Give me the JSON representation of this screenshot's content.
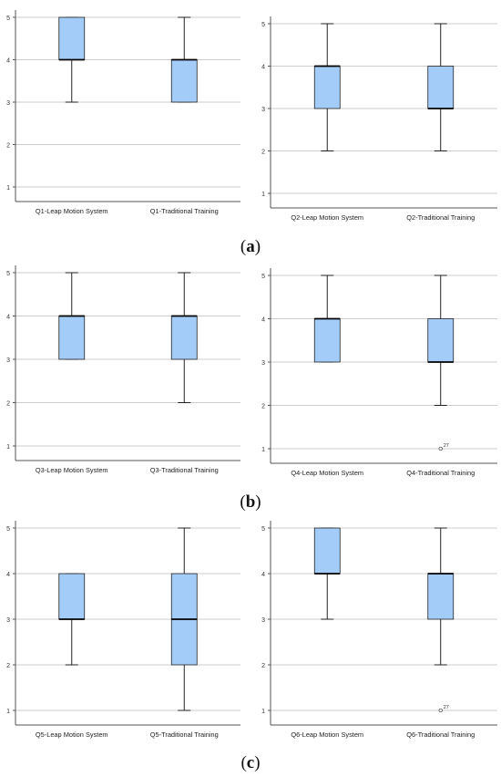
{
  "captions": [
    "(a)",
    "(b)",
    "(c)"
  ],
  "caption_parts": [
    {
      "open": "(",
      "letter": "a",
      "close": ")"
    },
    {
      "open": "(",
      "letter": "b",
      "close": ")"
    },
    {
      "open": "(",
      "letter": "c",
      "close": ")"
    }
  ],
  "colors": {
    "box_fill": "#a3cdf8",
    "box_stroke": "#222222",
    "grid": "#cccccc",
    "axis": "#555555"
  },
  "chart_data": [
    {
      "type": "boxplot",
      "ylim": [
        1,
        5
      ],
      "yticks": [
        1,
        2,
        3,
        4,
        5
      ],
      "grid": true,
      "categories": [
        "Q1-Leap Motion System",
        "Q1-Traditional Training"
      ],
      "boxes": [
        {
          "min": 3,
          "q1": 4,
          "median": 4,
          "q3": 5,
          "max": 5,
          "outliers": []
        },
        {
          "min": 3,
          "q1": 3,
          "median": 4,
          "q3": 4,
          "max": 5,
          "outliers": []
        }
      ]
    },
    {
      "type": "boxplot",
      "ylim": [
        1,
        5
      ],
      "yticks": [
        1,
        2,
        3,
        4,
        5
      ],
      "grid": true,
      "categories": [
        "Q2-Leap Motion System",
        "Q2-Traditional Training"
      ],
      "boxes": [
        {
          "min": 2,
          "q1": 3,
          "median": 4,
          "q3": 4,
          "max": 5,
          "outliers": []
        },
        {
          "min": 2,
          "q1": 3,
          "median": 3,
          "q3": 4,
          "max": 5,
          "outliers": []
        }
      ]
    },
    {
      "type": "boxplot",
      "ylim": [
        1,
        5
      ],
      "yticks": [
        1,
        2,
        3,
        4,
        5
      ],
      "grid": true,
      "categories": [
        "Q3-Leap Motion System",
        "Q3-Traditional Training"
      ],
      "boxes": [
        {
          "min": 3,
          "q1": 3,
          "median": 4,
          "q3": 4,
          "max": 5,
          "outliers": []
        },
        {
          "min": 2,
          "q1": 3,
          "median": 4,
          "q3": 4,
          "max": 5,
          "outliers": []
        }
      ]
    },
    {
      "type": "boxplot",
      "ylim": [
        1,
        5
      ],
      "yticks": [
        1,
        2,
        3,
        4,
        5
      ],
      "grid": true,
      "categories": [
        "Q4-Leap Motion System",
        "Q4-Traditional Training"
      ],
      "boxes": [
        {
          "min": 3,
          "q1": 3,
          "median": 4,
          "q3": 4,
          "max": 5,
          "outliers": []
        },
        {
          "min": 2,
          "q1": 3,
          "median": 3,
          "q3": 4,
          "max": 5,
          "outliers": [
            {
              "value": 1,
              "label": "27"
            }
          ]
        }
      ]
    },
    {
      "type": "boxplot",
      "ylim": [
        1,
        5
      ],
      "yticks": [
        1,
        2,
        3,
        4,
        5
      ],
      "grid": true,
      "categories": [
        "Q5-Leap Motion System",
        "Q5-Traditional Training"
      ],
      "boxes": [
        {
          "min": 2,
          "q1": 3,
          "median": 3,
          "q3": 4,
          "max": 4,
          "outliers": []
        },
        {
          "min": 1,
          "q1": 2,
          "median": 3,
          "q3": 4,
          "max": 5,
          "outliers": []
        }
      ]
    },
    {
      "type": "boxplot",
      "ylim": [
        1,
        5
      ],
      "yticks": [
        1,
        2,
        3,
        4,
        5
      ],
      "grid": true,
      "categories": [
        "Q6-Leap Motion System",
        "Q6-Traditional Training"
      ],
      "boxes": [
        {
          "min": 3,
          "q1": 4,
          "median": 4,
          "q3": 5,
          "max": 5,
          "outliers": []
        },
        {
          "min": 2,
          "q1": 3,
          "median": 4,
          "q3": 4,
          "max": 5,
          "outliers": [
            {
              "value": 1,
              "label": "27"
            }
          ]
        }
      ]
    }
  ]
}
